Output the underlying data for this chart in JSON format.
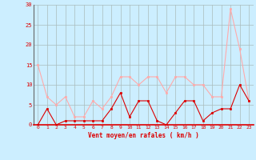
{
  "x": [
    0,
    1,
    2,
    3,
    4,
    5,
    6,
    7,
    8,
    9,
    10,
    11,
    12,
    13,
    14,
    15,
    16,
    17,
    18,
    19,
    20,
    21,
    22,
    23
  ],
  "wind_avg": [
    0,
    4,
    0,
    1,
    1,
    1,
    1,
    1,
    4,
    8,
    2,
    6,
    6,
    1,
    0,
    3,
    6,
    6,
    1,
    3,
    4,
    4,
    10,
    6
  ],
  "wind_gust": [
    15,
    7,
    5,
    7,
    2,
    2,
    6,
    4,
    7,
    12,
    12,
    10,
    12,
    12,
    8,
    12,
    12,
    10,
    10,
    7,
    7,
    29,
    19,
    6
  ],
  "xlabel": "Vent moyen/en rafales ( km/h )",
  "ylim": [
    0,
    30
  ],
  "yticks": [
    0,
    5,
    10,
    15,
    20,
    25,
    30
  ],
  "xticks": [
    0,
    1,
    2,
    3,
    4,
    5,
    6,
    7,
    8,
    9,
    10,
    11,
    12,
    13,
    14,
    15,
    16,
    17,
    18,
    19,
    20,
    21,
    22,
    23
  ],
  "line_color_avg": "#dd0000",
  "line_color_gust": "#ffaaaa",
  "bg_color": "#cceeff",
  "grid_color": "#aabbbb",
  "xlabel_color": "#dd0000",
  "tick_color": "#dd0000"
}
